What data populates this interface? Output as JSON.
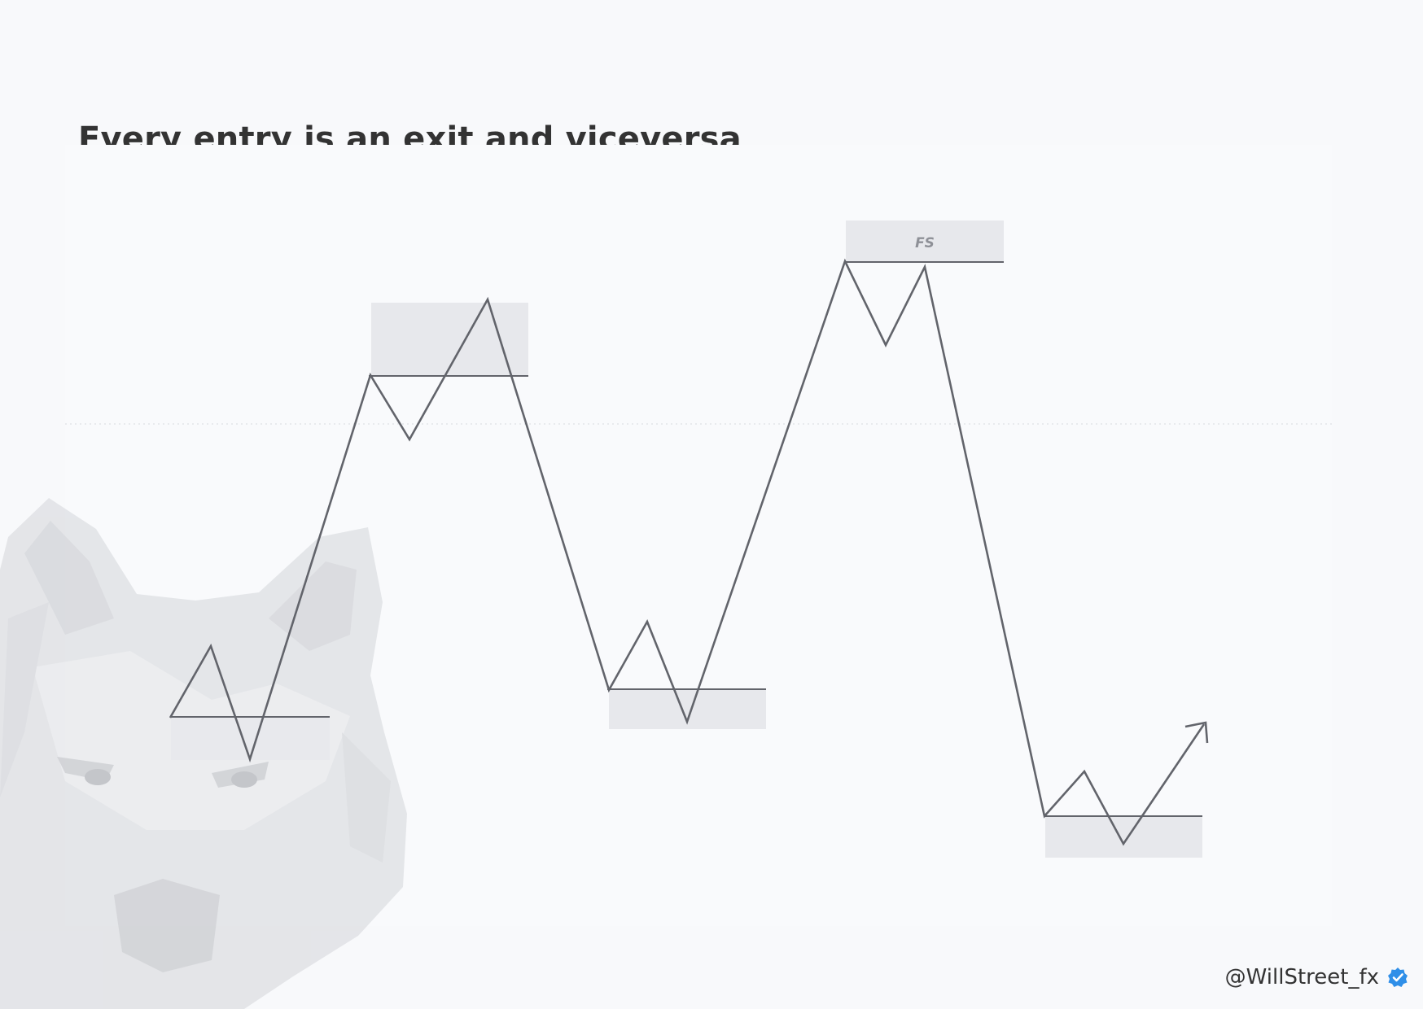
{
  "title": "Every entry is an exit and viceversa",
  "zone_label": "FS",
  "credit": {
    "handle": "@WillStreet_fx",
    "badge_icon": "verified-check-icon"
  },
  "watermark_icon": "wolf-head-icon",
  "colors": {
    "background": "#f8f9fb",
    "line": "#62646b",
    "zone": "#e7e8ec",
    "title": "#333333",
    "verified": "#2f8fe8"
  }
}
